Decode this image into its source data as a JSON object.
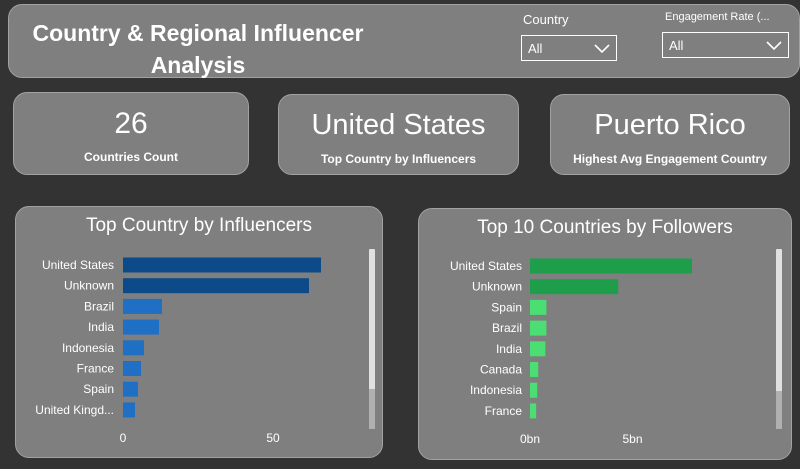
{
  "header": {
    "title": "Country & Regional Influencer Analysis",
    "filters": {
      "country": {
        "label": "Country",
        "value": "All"
      },
      "engagement": {
        "label": "Engagement Rate (...",
        "value": "All"
      }
    }
  },
  "kpis": [
    {
      "value": "26",
      "label": "Countries Count"
    },
    {
      "value": "United States",
      "label": "Top Country by Influencers"
    },
    {
      "value": "Puerto Rico",
      "label": "Highest Avg Engagement Country"
    }
  ],
  "chart_data": [
    {
      "type": "bar",
      "orientation": "horizontal",
      "title": "Top Country by Influencers",
      "categories": [
        "United States",
        "Unknown",
        "Brazil",
        "India",
        "Indonesia",
        "France",
        "Spain",
        "United Kingd..."
      ],
      "values": [
        66,
        62,
        13,
        12,
        7,
        6,
        5,
        4
      ],
      "xticks": [
        "0",
        "50"
      ],
      "xlim": [
        0,
        80
      ],
      "color": "#0d4a8a",
      "color_light": "#1f6fc5"
    },
    {
      "type": "bar",
      "orientation": "horizontal",
      "title": "Top 10 Countries by Followers",
      "categories": [
        "United States",
        "Unknown",
        "Spain",
        "Brazil",
        "India",
        "Canada",
        "Indonesia",
        "France"
      ],
      "values": [
        7.9,
        4.3,
        0.8,
        0.8,
        0.75,
        0.4,
        0.35,
        0.3
      ],
      "xticks": [
        "0bn",
        "5bn"
      ],
      "xlim": [
        0,
        10
      ],
      "color": "#1e9e4a",
      "color_light": "#4ade73"
    }
  ]
}
